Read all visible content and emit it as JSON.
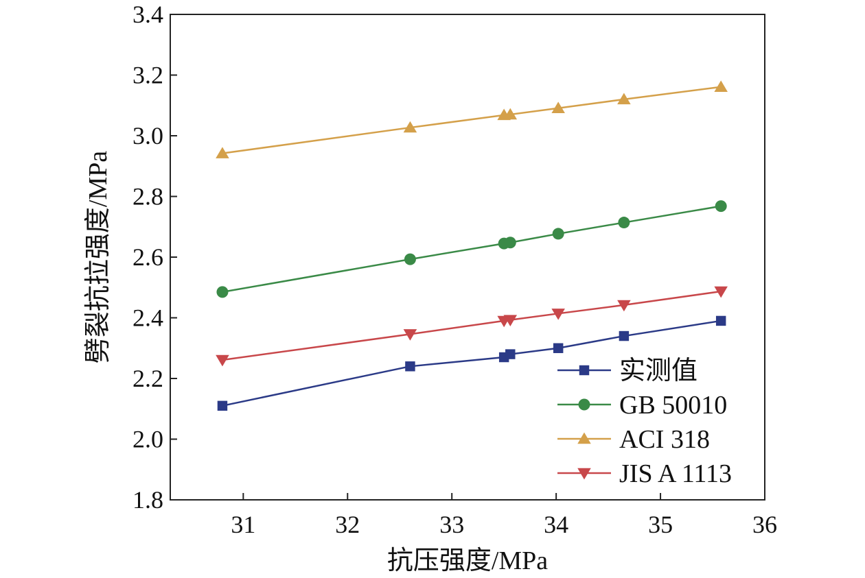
{
  "chart_data": {
    "type": "line",
    "xlabel": "抗压强度/MPa",
    "ylabel": "劈裂抗拉强度/MPa",
    "xlim": [
      30.3,
      36
    ],
    "ylim": [
      1.8,
      3.4
    ],
    "xticks": [
      "31",
      "32",
      "33",
      "34",
      "35",
      "36"
    ],
    "yticks": [
      "1.8",
      "2.0",
      "2.2",
      "2.4",
      "2.6",
      "2.8",
      "3.0",
      "3.2",
      "3.4"
    ],
    "x": [
      30.8,
      32.6,
      33.5,
      33.56,
      34.02,
      34.65,
      35.58
    ],
    "series": [
      {
        "name": "实测值",
        "marker": "square",
        "color": "#2b3a87",
        "values": [
          2.11,
          2.24,
          2.27,
          2.28,
          2.3,
          2.34,
          2.39
        ]
      },
      {
        "name": "GB 50010",
        "marker": "circle",
        "color": "#3a8a47",
        "values": [
          2.485,
          2.593,
          2.645,
          2.648,
          2.677,
          2.714,
          2.768
        ]
      },
      {
        "name": "ACI 318",
        "marker": "triangle-up",
        "color": "#d4a04a",
        "values": [
          2.942,
          3.027,
          3.068,
          3.07,
          3.091,
          3.12,
          3.161
        ]
      },
      {
        "name": "JIS A 1113",
        "marker": "triangle-down",
        "color": "#c8474a",
        "values": [
          2.261,
          2.346,
          2.39,
          2.393,
          2.414,
          2.442,
          2.487
        ]
      }
    ],
    "legend_position": "bottom-right",
    "grid": false
  }
}
